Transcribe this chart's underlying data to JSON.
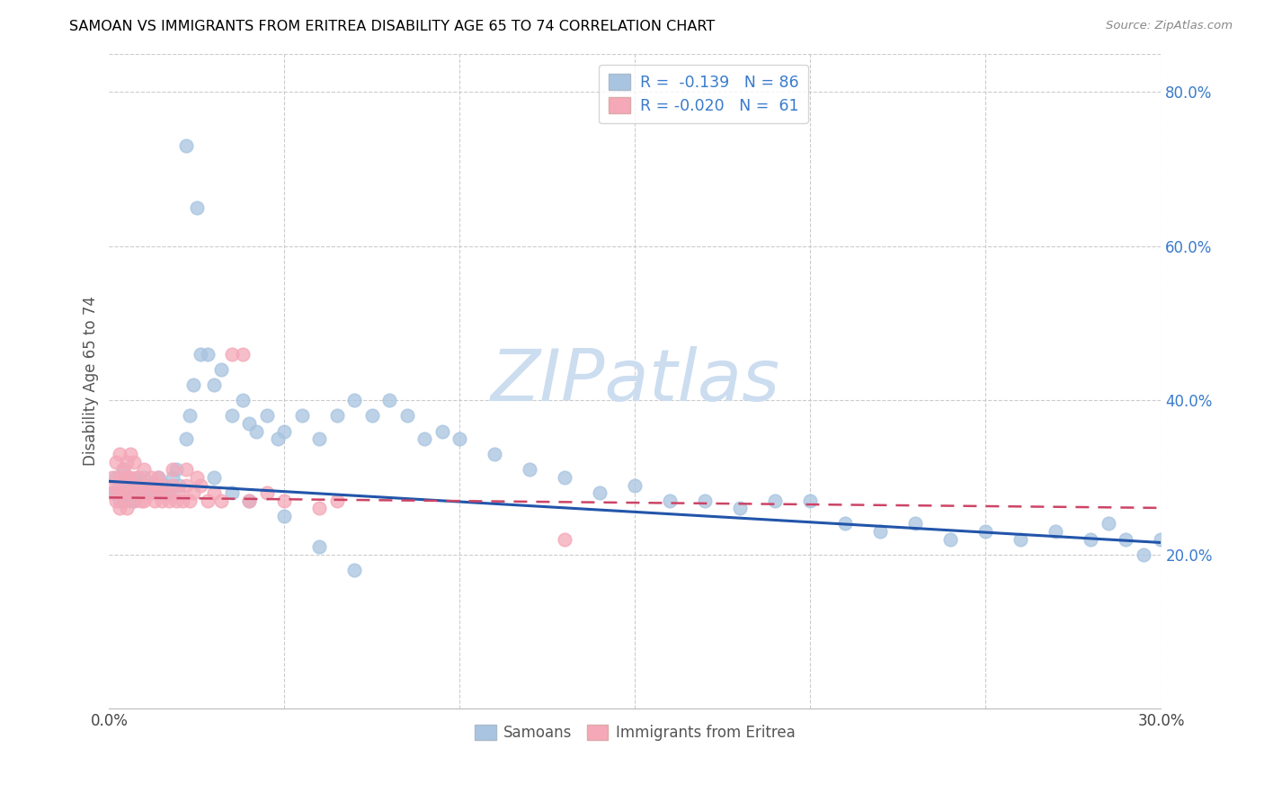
{
  "title": "SAMOAN VS IMMIGRANTS FROM ERITREA DISABILITY AGE 65 TO 74 CORRELATION CHART",
  "source": "Source: ZipAtlas.com",
  "ylabel": "Disability Age 65 to 74",
  "xlim": [
    0.0,
    0.3
  ],
  "ylim": [
    0.0,
    0.85
  ],
  "samoan_color": "#a8c4e0",
  "eritrea_color": "#f4a8b8",
  "samoan_line_color": "#2255aa",
  "eritrea_line_color": "#cc4466",
  "watermark_color": "#ccddf0",
  "legend_text_color": "#3a7bcc",
  "legend_labels": [
    "Samoans",
    "Immigrants from Eritrea"
  ],
  "samoan_R": -0.139,
  "samoan_N": 86,
  "eritrea_R": -0.02,
  "eritrea_N": 61,
  "samoan_intercept": 0.295,
  "samoan_slope": -0.265,
  "eritrea_intercept": 0.274,
  "eritrea_slope": -0.045,
  "samoan_x": [
    0.001,
    0.002,
    0.002,
    0.003,
    0.003,
    0.003,
    0.004,
    0.004,
    0.004,
    0.005,
    0.005,
    0.005,
    0.006,
    0.006,
    0.006,
    0.007,
    0.007,
    0.008,
    0.008,
    0.009,
    0.01,
    0.01,
    0.011,
    0.012,
    0.013,
    0.014,
    0.015,
    0.016,
    0.017,
    0.018,
    0.019,
    0.02,
    0.022,
    0.023,
    0.024,
    0.026,
    0.028,
    0.03,
    0.032,
    0.035,
    0.038,
    0.04,
    0.042,
    0.045,
    0.048,
    0.05,
    0.055,
    0.06,
    0.065,
    0.07,
    0.075,
    0.08,
    0.085,
    0.09,
    0.095,
    0.1,
    0.11,
    0.12,
    0.13,
    0.14,
    0.15,
    0.16,
    0.17,
    0.18,
    0.19,
    0.2,
    0.21,
    0.22,
    0.23,
    0.24,
    0.25,
    0.26,
    0.27,
    0.28,
    0.285,
    0.29,
    0.295,
    0.3,
    0.022,
    0.025,
    0.03,
    0.035,
    0.04,
    0.05,
    0.06,
    0.07
  ],
  "samoan_y": [
    0.28,
    0.28,
    0.3,
    0.28,
    0.27,
    0.29,
    0.27,
    0.29,
    0.31,
    0.28,
    0.3,
    0.28,
    0.27,
    0.29,
    0.28,
    0.27,
    0.29,
    0.28,
    0.3,
    0.29,
    0.28,
    0.3,
    0.29,
    0.28,
    0.29,
    0.3,
    0.28,
    0.29,
    0.28,
    0.3,
    0.31,
    0.29,
    0.35,
    0.38,
    0.42,
    0.46,
    0.46,
    0.42,
    0.44,
    0.38,
    0.4,
    0.37,
    0.36,
    0.38,
    0.35,
    0.36,
    0.38,
    0.35,
    0.38,
    0.4,
    0.38,
    0.4,
    0.38,
    0.35,
    0.36,
    0.35,
    0.33,
    0.31,
    0.3,
    0.28,
    0.29,
    0.27,
    0.27,
    0.26,
    0.27,
    0.27,
    0.24,
    0.23,
    0.24,
    0.22,
    0.23,
    0.22,
    0.23,
    0.22,
    0.24,
    0.22,
    0.2,
    0.22,
    0.73,
    0.65,
    0.3,
    0.28,
    0.27,
    0.25,
    0.21,
    0.18
  ],
  "eritrea_x": [
    0.001,
    0.001,
    0.002,
    0.002,
    0.002,
    0.003,
    0.003,
    0.003,
    0.003,
    0.004,
    0.004,
    0.004,
    0.005,
    0.005,
    0.005,
    0.005,
    0.006,
    0.006,
    0.006,
    0.007,
    0.007,
    0.007,
    0.008,
    0.008,
    0.009,
    0.009,
    0.01,
    0.01,
    0.011,
    0.012,
    0.012,
    0.013,
    0.013,
    0.014,
    0.014,
    0.015,
    0.015,
    0.016,
    0.017,
    0.018,
    0.018,
    0.019,
    0.02,
    0.021,
    0.022,
    0.022,
    0.023,
    0.024,
    0.025,
    0.026,
    0.028,
    0.03,
    0.032,
    0.035,
    0.038,
    0.04,
    0.045,
    0.05,
    0.06,
    0.065,
    0.13
  ],
  "eritrea_y": [
    0.28,
    0.3,
    0.27,
    0.29,
    0.32,
    0.26,
    0.28,
    0.3,
    0.33,
    0.27,
    0.29,
    0.31,
    0.26,
    0.28,
    0.3,
    0.32,
    0.28,
    0.3,
    0.33,
    0.27,
    0.29,
    0.32,
    0.28,
    0.3,
    0.27,
    0.29,
    0.27,
    0.31,
    0.29,
    0.28,
    0.3,
    0.27,
    0.29,
    0.28,
    0.3,
    0.27,
    0.29,
    0.28,
    0.27,
    0.29,
    0.31,
    0.27,
    0.28,
    0.27,
    0.29,
    0.31,
    0.27,
    0.28,
    0.3,
    0.29,
    0.27,
    0.28,
    0.27,
    0.46,
    0.46,
    0.27,
    0.28,
    0.27,
    0.26,
    0.27,
    0.22
  ]
}
